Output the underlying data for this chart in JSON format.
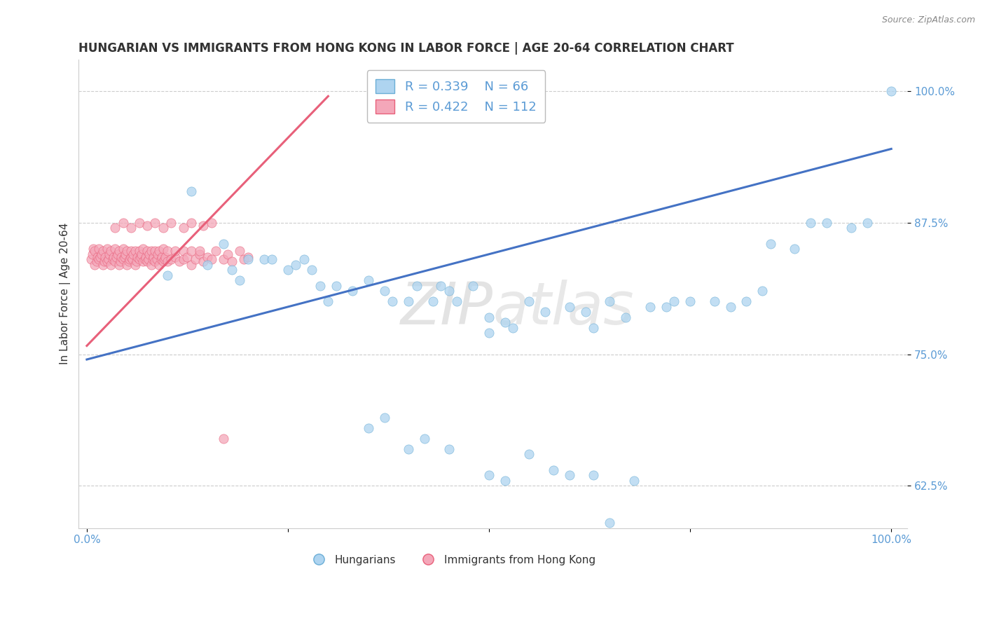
{
  "title": "HUNGARIAN VS IMMIGRANTS FROM HONG KONG IN LABOR FORCE | AGE 20-64 CORRELATION CHART",
  "source": "Source: ZipAtlas.com",
  "xmin": 0.0,
  "xmax": 1.0,
  "ymin": 0.585,
  "ymax": 1.03,
  "blue_color": "#AED4F0",
  "blue_edge": "#6BAED6",
  "pink_color": "#F4A7B9",
  "pink_edge": "#E8607A",
  "blue_line_color": "#4472C4",
  "pink_line_color": "#E8607A",
  "watermark_color": "#DDDDDD",
  "legend_text_color": "#5B9BD5",
  "tick_color": "#5B9BD5",
  "grid_color": "#CCCCCC",
  "title_color": "#333333",
  "source_color": "#888888",
  "ylabel": "In Labor Force | Age 20-64",
  "blue_line_x0": 0.0,
  "blue_line_y0": 0.745,
  "blue_line_x1": 1.0,
  "blue_line_y1": 0.945,
  "pink_line_x0": 0.0,
  "pink_line_y0": 0.758,
  "pink_line_x1": 0.3,
  "pink_line_y1": 0.995,
  "blue_x": [
    0.1,
    0.13,
    0.15,
    0.17,
    0.18,
    0.19,
    0.2,
    0.22,
    0.23,
    0.25,
    0.26,
    0.27,
    0.28,
    0.29,
    0.3,
    0.31,
    0.33,
    0.35,
    0.37,
    0.38,
    0.4,
    0.41,
    0.43,
    0.44,
    0.45,
    0.46,
    0.48,
    0.5,
    0.5,
    0.52,
    0.53,
    0.55,
    0.57,
    0.6,
    0.62,
    0.63,
    0.65,
    0.67,
    0.7,
    0.72,
    0.73,
    0.75,
    0.78,
    0.8,
    0.82,
    0.84,
    0.85,
    0.88,
    0.9,
    0.92,
    0.95,
    0.97,
    1.0,
    0.35,
    0.37,
    0.4,
    0.42,
    0.45,
    0.5,
    0.52,
    0.55,
    0.58,
    0.6,
    0.63,
    0.65,
    0.68
  ],
  "blue_y": [
    0.825,
    0.905,
    0.835,
    0.855,
    0.83,
    0.82,
    0.84,
    0.84,
    0.84,
    0.83,
    0.835,
    0.84,
    0.83,
    0.815,
    0.8,
    0.815,
    0.81,
    0.82,
    0.81,
    0.8,
    0.8,
    0.815,
    0.8,
    0.815,
    0.81,
    0.8,
    0.815,
    0.785,
    0.77,
    0.78,
    0.775,
    0.8,
    0.79,
    0.795,
    0.79,
    0.775,
    0.8,
    0.785,
    0.795,
    0.795,
    0.8,
    0.8,
    0.8,
    0.795,
    0.8,
    0.81,
    0.855,
    0.85,
    0.875,
    0.875,
    0.87,
    0.875,
    1.0,
    0.68,
    0.69,
    0.66,
    0.67,
    0.66,
    0.635,
    0.63,
    0.655,
    0.64,
    0.635,
    0.635,
    0.59,
    0.63
  ],
  "pink_x": [
    0.005,
    0.007,
    0.008,
    0.01,
    0.01,
    0.012,
    0.013,
    0.015,
    0.015,
    0.017,
    0.018,
    0.02,
    0.02,
    0.022,
    0.023,
    0.025,
    0.025,
    0.027,
    0.028,
    0.03,
    0.03,
    0.032,
    0.033,
    0.035,
    0.035,
    0.037,
    0.038,
    0.04,
    0.04,
    0.042,
    0.043,
    0.045,
    0.045,
    0.047,
    0.048,
    0.05,
    0.05,
    0.052,
    0.053,
    0.055,
    0.055,
    0.057,
    0.058,
    0.06,
    0.06,
    0.062,
    0.063,
    0.065,
    0.065,
    0.067,
    0.068,
    0.07,
    0.07,
    0.072,
    0.073,
    0.075,
    0.075,
    0.077,
    0.078,
    0.08,
    0.08,
    0.082,
    0.083,
    0.085,
    0.085,
    0.087,
    0.088,
    0.09,
    0.09,
    0.092,
    0.093,
    0.095,
    0.095,
    0.097,
    0.098,
    0.1,
    0.1,
    0.105,
    0.11,
    0.11,
    0.115,
    0.12,
    0.12,
    0.125,
    0.13,
    0.13,
    0.135,
    0.14,
    0.14,
    0.145,
    0.15,
    0.155,
    0.16,
    0.17,
    0.175,
    0.18,
    0.19,
    0.195,
    0.2,
    0.035,
    0.045,
    0.055,
    0.065,
    0.075,
    0.085,
    0.095,
    0.105,
    0.12,
    0.13,
    0.145,
    0.155,
    0.17
  ],
  "pink_y": [
    0.84,
    0.845,
    0.85,
    0.835,
    0.848,
    0.838,
    0.842,
    0.84,
    0.85,
    0.842,
    0.845,
    0.835,
    0.848,
    0.838,
    0.842,
    0.838,
    0.85,
    0.84,
    0.845,
    0.835,
    0.848,
    0.84,
    0.842,
    0.838,
    0.85,
    0.842,
    0.845,
    0.835,
    0.848,
    0.838,
    0.842,
    0.84,
    0.85,
    0.842,
    0.845,
    0.835,
    0.848,
    0.838,
    0.84,
    0.842,
    0.848,
    0.84,
    0.845,
    0.835,
    0.848,
    0.838,
    0.842,
    0.84,
    0.848,
    0.842,
    0.845,
    0.838,
    0.85,
    0.84,
    0.842,
    0.838,
    0.848,
    0.84,
    0.845,
    0.835,
    0.848,
    0.84,
    0.842,
    0.838,
    0.848,
    0.84,
    0.845,
    0.835,
    0.848,
    0.84,
    0.842,
    0.838,
    0.85,
    0.84,
    0.842,
    0.838,
    0.848,
    0.84,
    0.842,
    0.848,
    0.838,
    0.84,
    0.848,
    0.842,
    0.835,
    0.848,
    0.84,
    0.845,
    0.848,
    0.838,
    0.842,
    0.84,
    0.848,
    0.84,
    0.845,
    0.838,
    0.848,
    0.84,
    0.842,
    0.87,
    0.875,
    0.87,
    0.875,
    0.872,
    0.875,
    0.87,
    0.875,
    0.87,
    0.875,
    0.872,
    0.875,
    0.67
  ]
}
